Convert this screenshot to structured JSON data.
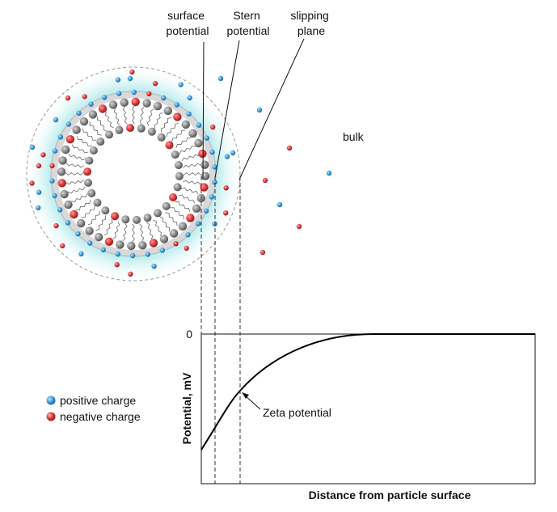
{
  "labels": {
    "surface_potential": [
      "surface",
      "potential"
    ],
    "stern_potential": [
      "Stern",
      "potential"
    ],
    "slipping_plane": [
      "slipping",
      "plane"
    ],
    "bulk": "bulk",
    "zeta_potential": "Zeta potential",
    "y_zero": "0"
  },
  "legend": {
    "positive": "positive charge",
    "negative": "negative charge"
  },
  "axes": {
    "xlabel": "Distance from particle surface",
    "ylabel": "Potential, mV"
  },
  "colors": {
    "positive_ion": "#3a9ad9",
    "negative_ion": "#d93a3a",
    "lipid_head_gray": "#8a8a8a",
    "glow": "#5fd3d6",
    "stern_band": "#d9d9d9"
  }
}
